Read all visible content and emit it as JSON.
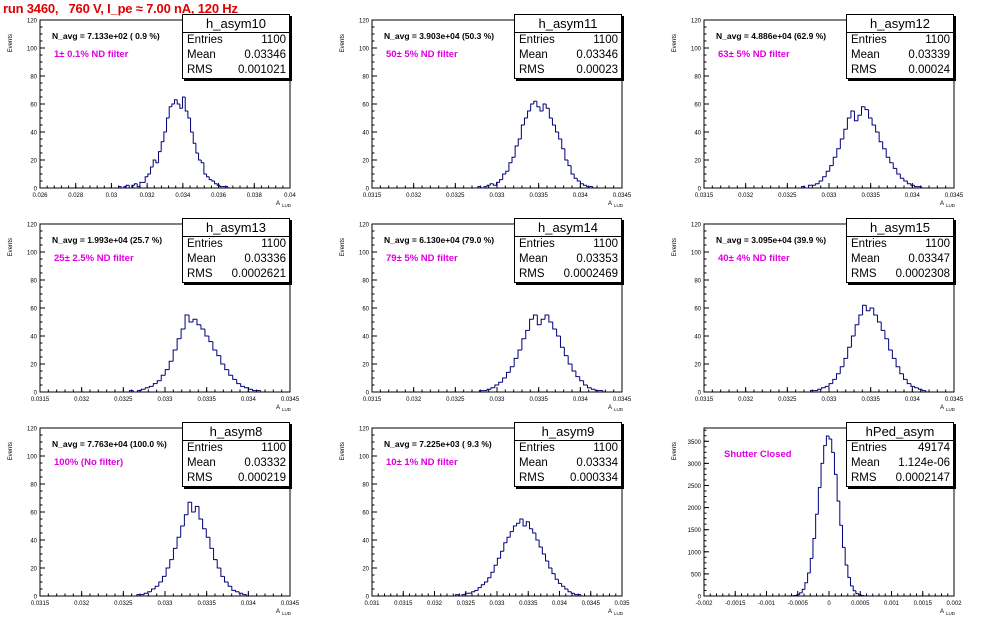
{
  "page": {
    "title": "run 3460,   760 V, I_pe ≈ 7.00 nA, 120 Hz"
  },
  "colors": {
    "title": "#e00000",
    "histogram": "#00007a",
    "annotation": "#e000e0",
    "axis": "#000000"
  },
  "panels": [
    {
      "name": "h_asym10",
      "entries": "1100",
      "mean": "0.03346",
      "rms": "0.001021",
      "navg": "N_avg = 7.133e+02 ( 0.9 %)",
      "filter": "1± 0.1% ND filter",
      "xticks": [
        "0.026",
        "0.028",
        "0.03",
        "0.032",
        "0.034",
        "0.036",
        "0.038",
        "0.04"
      ],
      "yticks": [
        "0",
        "20",
        "40",
        "60",
        "80",
        "100",
        "120"
      ]
    },
    {
      "name": "h_asym11",
      "entries": "1100",
      "mean": "0.03346",
      "rms": "0.00023",
      "navg": "N_avg = 3.903e+04 (50.3 %)",
      "filter": "50± 5% ND filter",
      "xticks": [
        "0.0315",
        "0.032",
        "0.0325",
        "0.033",
        "0.0335",
        "0.034",
        "0.0345"
      ],
      "yticks": [
        "0",
        "20",
        "40",
        "60",
        "80",
        "100",
        "120"
      ]
    },
    {
      "name": "h_asym12",
      "entries": "1100",
      "mean": "0.03339",
      "rms": "0.00024",
      "navg": "N_avg = 4.886e+04 (62.9 %)",
      "filter": "63± 5% ND filter",
      "xticks": [
        "0.0315",
        "0.032",
        "0.0325",
        "0.033",
        "0.0335",
        "0.034",
        "0.0345"
      ],
      "yticks": [
        "0",
        "20",
        "40",
        "60",
        "80",
        "100",
        "120"
      ]
    },
    {
      "name": "h_asym13",
      "entries": "1100",
      "mean": "0.03336",
      "rms": "0.0002621",
      "navg": "N_avg = 1.993e+04 (25.7 %)",
      "filter": "25± 2.5% ND filter",
      "xticks": [
        "0.0315",
        "0.032",
        "0.0325",
        "0.033",
        "0.0335",
        "0.034",
        "0.0345"
      ],
      "yticks": [
        "0",
        "20",
        "40",
        "60",
        "80",
        "100",
        "120"
      ]
    },
    {
      "name": "h_asym14",
      "entries": "1100",
      "mean": "0.03353",
      "rms": "0.0002469",
      "navg": "N_avg = 6.130e+04 (79.0 %)",
      "filter": "79± 5% ND filter",
      "xticks": [
        "0.0315",
        "0.032",
        "0.0325",
        "0.033",
        "0.0335",
        "0.034",
        "0.0345"
      ],
      "yticks": [
        "0",
        "20",
        "40",
        "60",
        "80",
        "100",
        "120"
      ]
    },
    {
      "name": "h_asym15",
      "entries": "1100",
      "mean": "0.03347",
      "rms": "0.0002308",
      "navg": "N_avg = 3.095e+04 (39.9 %)",
      "filter": "40± 4% ND filter",
      "xticks": [
        "0.0315",
        "0.032",
        "0.0325",
        "0.033",
        "0.0335",
        "0.034",
        "0.0345"
      ],
      "yticks": [
        "0",
        "20",
        "40",
        "60",
        "80",
        "100",
        "120"
      ]
    },
    {
      "name": "h_asym8",
      "entries": "1100",
      "mean": "0.03332",
      "rms": "0.000219",
      "navg": "N_avg = 7.763e+04 (100.0 %)",
      "filter": "100% (No filter)",
      "xticks": [
        "0.0315",
        "0.032",
        "0.0325",
        "0.033",
        "0.0335",
        "0.034",
        "0.0345"
      ],
      "yticks": [
        "0",
        "20",
        "40",
        "60",
        "80",
        "100",
        "120"
      ]
    },
    {
      "name": "h_asym9",
      "entries": "1100",
      "mean": "0.03334",
      "rms": "0.000334",
      "navg": "N_avg = 7.225e+03 ( 9.3 %)",
      "filter": "10± 1% ND filter",
      "xticks": [
        "0.031",
        "0.0315",
        "0.032",
        "0.0325",
        "0.033",
        "0.0335",
        "0.034",
        "0.0345",
        "0.035"
      ],
      "yticks": [
        "0",
        "20",
        "40",
        "60",
        "80",
        "100",
        "120"
      ]
    },
    {
      "name": "hPed_asym",
      "entries": "49174",
      "mean": "1.124e-06",
      "rms": "0.0002147",
      "navg": "",
      "filter": "Shutter Closed",
      "xticks": [
        "-0.002",
        "-0.0015",
        "-0.001",
        "-0.0005",
        "0",
        "0.0005",
        "0.001",
        "0.0015",
        "0.002"
      ],
      "yticks": [
        "0",
        "500",
        "1000",
        "1500",
        "2000",
        "2500",
        "3000",
        "3500"
      ]
    }
  ],
  "labels": {
    "entries": "Entries",
    "mean": "Mean",
    "rms": "RMS",
    "ylabel": "Events",
    "xlabel": "A",
    "xlabel_sub": "LUD"
  },
  "chart_data": [
    {
      "type": "bar",
      "title": "h_asym10",
      "xlabel": "A LUD",
      "ylabel": "Events",
      "xlim": [
        0.026,
        0.04
      ],
      "ylim": [
        0,
        120
      ],
      "series": [
        {
          "x_center": 0.03346,
          "sigma": 0.001021,
          "values": [
            1,
            0,
            1,
            2,
            0,
            2,
            3,
            1,
            4,
            4,
            8,
            10,
            15,
            20,
            18,
            26,
            33,
            40,
            50,
            58,
            60,
            63,
            60,
            57,
            65,
            55,
            50,
            40,
            32,
            25,
            20,
            18,
            10,
            8,
            6,
            5,
            3,
            2,
            1,
            1,
            1
          ]
        }
      ]
    },
    {
      "type": "bar",
      "title": "h_asym11",
      "xlabel": "A LUD",
      "ylabel": "Events",
      "xlim": [
        0.0315,
        0.0345
      ],
      "ylim": [
        0,
        120
      ],
      "series": [
        {
          "x_center": 0.03346,
          "sigma": 0.00023,
          "values": [
            1,
            0,
            1,
            2,
            3,
            2,
            4,
            6,
            10,
            12,
            18,
            22,
            30,
            35,
            45,
            50,
            55,
            60,
            62,
            58,
            55,
            60,
            57,
            50,
            45,
            40,
            35,
            28,
            20,
            16,
            10,
            7,
            5,
            3,
            2,
            1,
            1
          ]
        }
      ]
    },
    {
      "type": "bar",
      "title": "h_asym12",
      "xlabel": "A LUD",
      "ylabel": "Events",
      "xlim": [
        0.0315,
        0.0345
      ],
      "ylim": [
        0,
        120
      ],
      "series": [
        {
          "x_center": 0.03339,
          "sigma": 0.00024,
          "values": [
            1,
            0,
            2,
            2,
            3,
            5,
            8,
            12,
            16,
            22,
            28,
            35,
            42,
            50,
            55,
            48,
            52,
            58,
            56,
            50,
            45,
            40,
            33,
            28,
            22,
            18,
            14,
            10,
            7,
            5,
            3,
            2,
            1,
            1
          ]
        }
      ]
    },
    {
      "type": "bar",
      "title": "h_asym13",
      "xlabel": "A LUD",
      "ylabel": "Events",
      "xlim": [
        0.0315,
        0.0345
      ],
      "ylim": [
        0,
        120
      ],
      "series": [
        {
          "x_center": 0.03336,
          "sigma": 0.0002621,
          "values": [
            1,
            0,
            1,
            2,
            3,
            4,
            6,
            8,
            12,
            16,
            22,
            30,
            38,
            45,
            55,
            50,
            52,
            48,
            45,
            40,
            36,
            30,
            26,
            20,
            16,
            12,
            9,
            6,
            4,
            3,
            2,
            1,
            1
          ]
        }
      ]
    },
    {
      "type": "bar",
      "title": "h_asym14",
      "xlabel": "A LUD",
      "ylabel": "Events",
      "xlim": [
        0.0315,
        0.0345
      ],
      "ylim": [
        0,
        120
      ],
      "series": [
        {
          "x_center": 0.03353,
          "sigma": 0.0002469,
          "values": [
            1,
            1,
            2,
            3,
            5,
            7,
            10,
            14,
            18,
            24,
            30,
            38,
            44,
            52,
            55,
            48,
            52,
            55,
            50,
            45,
            40,
            32,
            26,
            20,
            15,
            11,
            8,
            5,
            3,
            2,
            1,
            1
          ]
        }
      ]
    },
    {
      "type": "bar",
      "title": "h_asym15",
      "xlabel": "A LUD",
      "ylabel": "Events",
      "xlim": [
        0.0315,
        0.0345
      ],
      "ylim": [
        0,
        120
      ],
      "series": [
        {
          "x_center": 0.03347,
          "sigma": 0.0002308,
          "values": [
            1,
            1,
            2,
            3,
            4,
            6,
            9,
            13,
            18,
            24,
            32,
            40,
            48,
            55,
            62,
            58,
            60,
            55,
            50,
            44,
            38,
            30,
            24,
            18,
            13,
            9,
            6,
            4,
            3,
            2,
            1
          ]
        }
      ]
    },
    {
      "type": "bar",
      "title": "h_asym8",
      "xlabel": "A LUD",
      "ylabel": "Events",
      "xlim": [
        0.0315,
        0.0345
      ],
      "ylim": [
        0,
        120
      ],
      "series": [
        {
          "x_center": 0.03332,
          "sigma": 0.000219,
          "values": [
            1,
            1,
            2,
            3,
            5,
            7,
            10,
            14,
            20,
            26,
            34,
            42,
            50,
            58,
            67,
            60,
            64,
            55,
            48,
            42,
            34,
            26,
            20,
            14,
            10,
            7,
            4,
            3,
            2,
            1
          ]
        }
      ]
    },
    {
      "type": "bar",
      "title": "h_asym9",
      "xlabel": "A LUD",
      "ylabel": "Events",
      "xlim": [
        0.031,
        0.035
      ],
      "ylim": [
        0,
        120
      ],
      "series": [
        {
          "x_center": 0.03334,
          "sigma": 0.000334,
          "values": [
            1,
            0,
            1,
            2,
            2,
            3,
            4,
            6,
            8,
            10,
            13,
            17,
            22,
            27,
            32,
            38,
            42,
            46,
            50,
            52,
            55,
            50,
            53,
            48,
            45,
            40,
            35,
            30,
            25,
            20,
            16,
            12,
            9,
            7,
            5,
            3,
            2,
            1,
            1
          ]
        }
      ]
    },
    {
      "type": "bar",
      "title": "hPed_asym",
      "xlabel": "A LUD",
      "ylabel": "Events",
      "xlim": [
        -0.002,
        0.002
      ],
      "ylim": [
        0,
        3800
      ],
      "series": [
        {
          "x_center": 1.124e-06,
          "sigma": 0.0002147,
          "values": [
            2,
            5,
            12,
            30,
            70,
            150,
            300,
            520,
            850,
            1300,
            1850,
            2450,
            3000,
            3400,
            3620,
            3550,
            3250,
            2750,
            2150,
            1600,
            1100,
            700,
            420,
            230,
            120,
            55,
            25,
            10,
            4,
            2
          ]
        }
      ]
    }
  ]
}
